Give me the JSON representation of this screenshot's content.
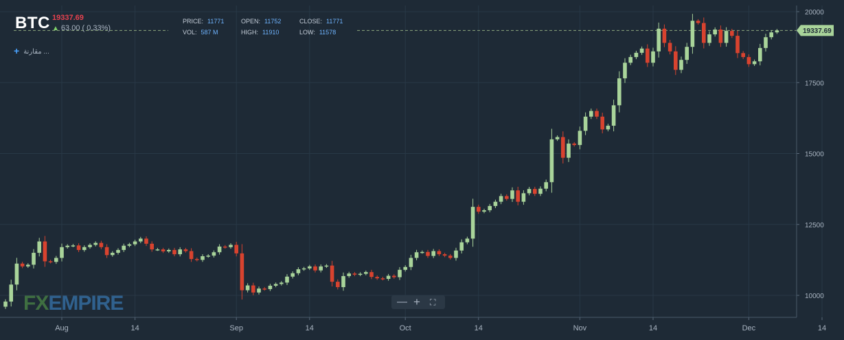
{
  "header": {
    "symbol": "BTC",
    "last_price": "19337.69",
    "change_text": "63.00 ( 0.33%)",
    "price_label": "PRICE:",
    "price_value": "11771",
    "open_label": "OPEN:",
    "open_value": "11752",
    "close_label": "CLOSE:",
    "close_value": "11771",
    "vol_label": "VOL:",
    "vol_value": "587 M",
    "high_label": "HIGH:",
    "high_value": "11910",
    "low_label": "LOW:",
    "low_value": "11578"
  },
  "toolbar": {
    "compare_label": "مقارنة ..."
  },
  "branding": {
    "logo_fx": "FX",
    "logo_empire": "EMPIRE"
  },
  "zoom": {
    "minus_icon": "minus-icon",
    "plus_icon": "plus-icon",
    "fullscreen_icon": "fullscreen-icon"
  },
  "colors": {
    "up": "#a9d49a",
    "down": "#d8432f",
    "background": "#1e2a36",
    "grid": "#283846",
    "price_tag": "#a9d49a"
  },
  "chart_data": {
    "type": "candlestick",
    "ylim": [
      9200,
      20200
    ],
    "y_ticks": [
      10000,
      12500,
      15000,
      17500,
      20000
    ],
    "x_labels": [
      {
        "label": "Aug",
        "day": 10
      },
      {
        "label": "14",
        "day": 23
      },
      {
        "label": "Sep",
        "day": 41
      },
      {
        "label": "14",
        "day": 54
      },
      {
        "label": "Oct",
        "day": 71
      },
      {
        "label": "14",
        "day": 84
      },
      {
        "label": "Nov",
        "day": 102
      },
      {
        "label": "14",
        "day": 115
      },
      {
        "label": "Dec",
        "day": 132
      },
      {
        "label": "14",
        "day": 145
      }
    ],
    "last_price_tag": 19337.69,
    "open_series_start": 9600,
    "closes": [
      9780,
      10380,
      11120,
      11020,
      11080,
      11500,
      11900,
      11200,
      11180,
      11320,
      11700,
      11750,
      11760,
      11600,
      11700,
      11780,
      11850,
      11700,
      11420,
      11500,
      11600,
      11750,
      11800,
      11900,
      12000,
      11820,
      11620,
      11620,
      11550,
      11600,
      11450,
      11620,
      11560,
      11280,
      11250,
      11380,
      11400,
      11520,
      11720,
      11700,
      11780,
      11480,
      10180,
      10350,
      10100,
      10240,
      10220,
      10340,
      10400,
      10450,
      10660,
      10780,
      10920,
      10950,
      11020,
      10880,
      11020,
      11050,
      10480,
      10290,
      10680,
      10770,
      10730,
      10760,
      10820,
      10650,
      10600,
      10580,
      10690,
      10640,
      10900,
      11000,
      11320,
      11520,
      11530,
      11390,
      11560,
      11450,
      11400,
      11320,
      11580,
      11870,
      12000,
      13120,
      12950,
      13000,
      13150,
      13300,
      13500,
      13400,
      13700,
      13300,
      13600,
      13750,
      13580,
      13760,
      13990,
      15500,
      15580,
      14850,
      15350,
      15300,
      15800,
      16300,
      16500,
      16300,
      15850,
      15980,
      16700,
      17650,
      18200,
      18400,
      18550,
      18700,
      18200,
      18600,
      19400,
      18900,
      18600,
      17950,
      18300,
      18760,
      19680,
      19600,
      18900,
      19200,
      19370,
      18900,
      19320,
      19150,
      18540,
      18400,
      18150,
      18250,
      18720,
      19100,
      19270,
      19337
    ]
  }
}
